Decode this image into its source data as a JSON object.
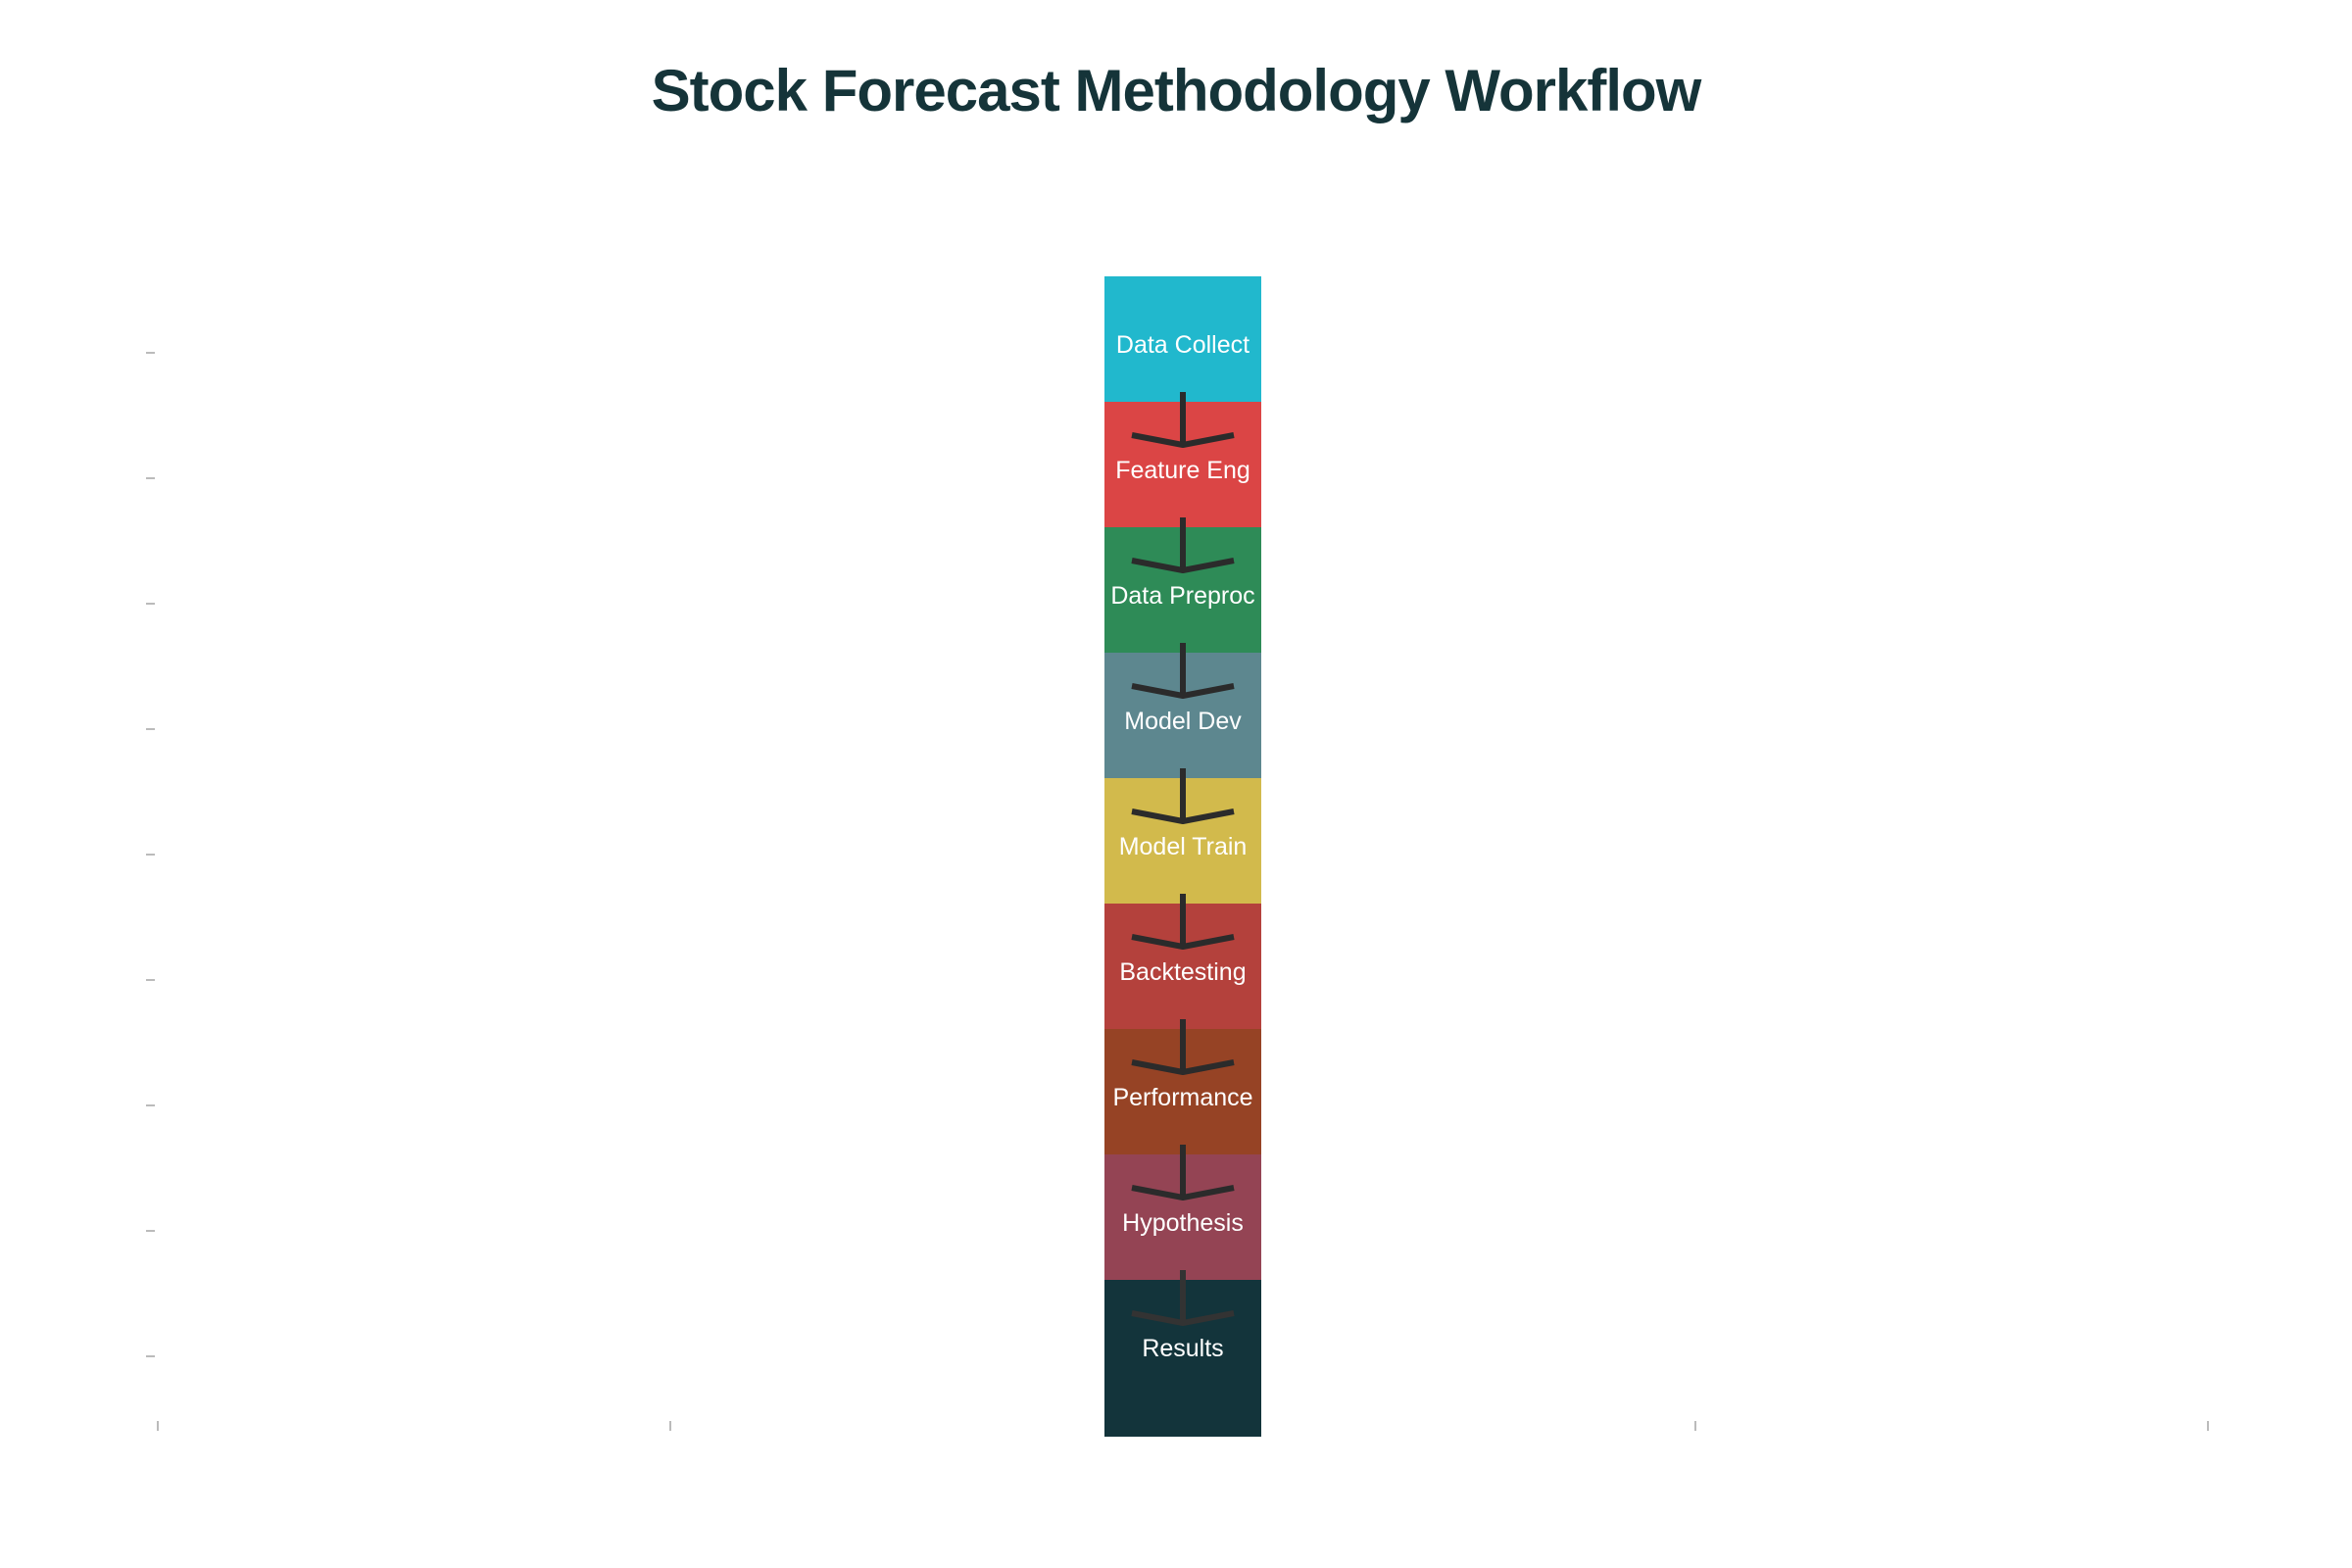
{
  "title": "Stock Forecast Methodology Workflow",
  "steps": [
    {
      "label": "Data Collect",
      "color": "#21B8CD"
    },
    {
      "label": "Feature Eng",
      "color": "#DB4545"
    },
    {
      "label": "Data Preproc",
      "color": "#2E8B57"
    },
    {
      "label": "Model Dev",
      "color": "#5D878F"
    },
    {
      "label": "Model Train",
      "color": "#D2BA4C"
    },
    {
      "label": "Backtesting",
      "color": "#B4413C"
    },
    {
      "label": "Performance",
      "color": "#944454"
    },
    {
      "label": "Hypothesis",
      "color": "#944454"
    },
    {
      "label": "Results",
      "color": "#13343B"
    }
  ],
  "arrow_color": "#2b2b2b",
  "tick_color": "#bbbbbb"
}
